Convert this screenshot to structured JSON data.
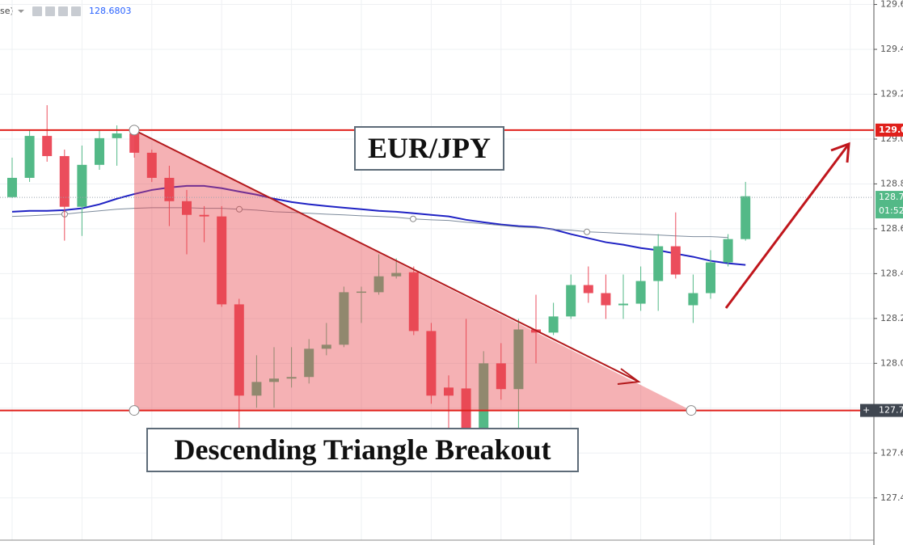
{
  "chart_data": {
    "type": "candlestick",
    "indicator_label": "se)",
    "indicator_value": "128.6803",
    "annotations": [
      "EUR/JPY",
      "Descending Triangle Breakout"
    ],
    "categories": [
      null,
      null,
      null,
      null,
      null,
      null,
      null,
      null,
      null,
      null,
      null,
      null,
      null,
      null,
      null,
      null,
      null,
      null,
      null,
      null,
      null,
      null,
      null,
      null,
      null,
      null,
      null,
      null,
      null,
      null,
      null,
      null,
      null,
      null,
      null,
      null,
      null,
      null,
      null,
      null,
      null,
      null,
      null
    ],
    "open": [
      128.741,
      128.827,
      129.014,
      128.924,
      128.698,
      128.885,
      129.004,
      129.025,
      128.939,
      128.827,
      128.723,
      128.662,
      128.655,
      128.263,
      127.856,
      127.917,
      127.932,
      127.939,
      128.065,
      128.083,
      128.317,
      128.317,
      128.388,
      128.406,
      128.144,
      127.892,
      127.888,
      127.712,
      128.0,
      127.885,
      128.151,
      128.137,
      128.209,
      128.349,
      128.313,
      128.259,
      128.266,
      128.367,
      128.522,
      128.259,
      128.313,
      128.45,
      128.554
    ],
    "high": [
      128.917,
      129.043,
      129.151,
      128.953,
      128.971,
      129.043,
      129.061,
      129.05,
      128.953,
      128.881,
      128.773,
      128.701,
      128.701,
      128.288,
      128.036,
      128.072,
      128.072,
      128.108,
      128.18,
      128.342,
      128.342,
      128.486,
      128.468,
      128.432,
      128.18,
      127.946,
      128.198,
      128.054,
      128.09,
      128.198,
      128.306,
      128.27,
      128.396,
      128.432,
      128.396,
      128.396,
      128.432,
      128.576,
      128.673,
      128.396,
      128.504,
      128.576,
      128.809
    ],
    "low": [
      128.737,
      128.809,
      128.899,
      128.547,
      128.568,
      128.863,
      128.881,
      128.917,
      128.809,
      128.612,
      128.486,
      128.54,
      128.252,
      127.658,
      127.802,
      127.802,
      127.892,
      127.91,
      128.036,
      128.072,
      128.18,
      128.306,
      128.378,
      128.126,
      127.82,
      127.712,
      127.694,
      127.676,
      127.838,
      127.712,
      128.0,
      128.126,
      128.198,
      128.27,
      128.198,
      128.198,
      128.234,
      128.234,
      128.378,
      128.18,
      128.288,
      128.432,
      128.547
    ],
    "close": [
      128.827,
      129.014,
      128.924,
      128.698,
      128.885,
      129.004,
      129.025,
      128.939,
      128.827,
      128.723,
      128.662,
      128.655,
      128.263,
      127.856,
      127.917,
      127.932,
      127.939,
      128.065,
      128.083,
      128.317,
      128.32,
      128.388,
      128.403,
      128.144,
      127.856,
      127.856,
      127.712,
      128.0,
      127.885,
      128.151,
      128.137,
      128.209,
      128.349,
      128.313,
      128.259,
      128.266,
      128.367,
      128.522,
      128.396,
      128.313,
      128.45,
      128.554,
      128.745
    ],
    "up_color": "#53b987",
    "down_color": "#eb4d5c",
    "overlays": [
      {
        "color": "#1f22c4",
        "values": [
          128.676,
          128.68,
          128.68,
          128.683,
          128.691,
          128.709,
          128.734,
          128.755,
          128.773,
          128.784,
          128.791,
          128.791,
          128.781,
          128.766,
          128.752,
          128.734,
          128.719,
          128.709,
          128.701,
          128.694,
          128.687,
          128.68,
          128.676,
          128.669,
          128.662,
          128.655,
          128.64,
          128.629,
          128.619,
          128.612,
          128.608,
          128.597,
          128.576,
          128.558,
          128.54,
          128.529,
          128.514,
          128.504,
          128.489,
          128.475,
          128.457,
          128.446,
          128.439
        ]
      },
      {
        "color": "#7d8b9c",
        "values": [
          128.655,
          128.658,
          128.662,
          128.665,
          128.673,
          128.68,
          128.687,
          128.691,
          128.694,
          128.694,
          128.694,
          128.691,
          128.691,
          128.687,
          128.683,
          128.676,
          128.673,
          128.669,
          128.665,
          128.662,
          128.658,
          128.655,
          128.651,
          128.644,
          128.64,
          128.637,
          128.629,
          128.622,
          128.615,
          128.608,
          128.604,
          128.597,
          128.594,
          128.586,
          128.583,
          128.579,
          128.576,
          128.572,
          128.568,
          128.565,
          128.565,
          128.561,
          null
        ]
      }
    ],
    "ylim": [
      127.19,
      129.62
    ],
    "yticks": [
      {
        "value": 129.6,
        "label": "129.60"
      },
      {
        "value": 129.4,
        "label": "129.40"
      },
      {
        "value": 129.2,
        "label": "129.20"
      },
      {
        "value": 129.0,
        "label": "129.00"
      },
      {
        "value": 128.8,
        "label": "128.80"
      },
      {
        "value": 128.6,
        "label": "128.60"
      },
      {
        "value": 128.4,
        "label": "128.40"
      },
      {
        "value": 128.2,
        "label": "128.20"
      },
      {
        "value": 128.0,
        "label": "128.00"
      },
      {
        "value": 127.8,
        "label": "127.80"
      },
      {
        "value": 127.6,
        "label": "127.60"
      },
      {
        "value": 127.4,
        "label": "127.40"
      }
    ],
    "grid": true,
    "resistance": {
      "value": 129.04,
      "color": "#e0201b"
    },
    "support": {
      "value": 127.79,
      "color": "#e0201b"
    },
    "last_price": {
      "value": 128.74,
      "color": "#53b987",
      "countdown": "01:52:"
    }
  }
}
